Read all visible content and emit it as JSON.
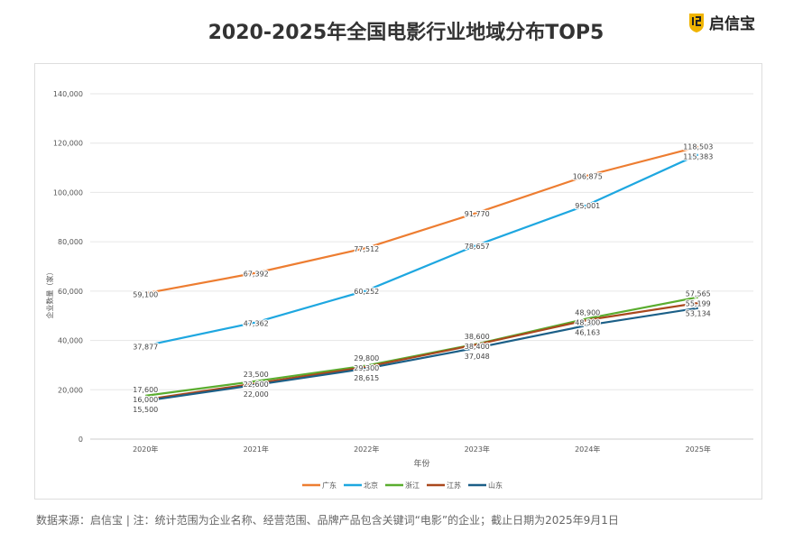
{
  "title": "2020-2025年全国电影行业地域分布TOP5",
  "brand": {
    "name": "启信宝",
    "color": "#f0b400"
  },
  "footer": "数据来源：启信宝 | 注：统计范围为企业名称、经营范围、品牌产品包含关键词“电影”的企业；截止日期为2025年9月1日",
  "chart_data": {
    "type": "line",
    "xlabel": "年份",
    "ylabel": "企业数量（家）",
    "ylim": [
      0,
      140000
    ],
    "yticks": [
      0,
      20000,
      40000,
      60000,
      80000,
      100000,
      120000,
      140000
    ],
    "ytick_labels": [
      "0",
      "20,000",
      "40,000",
      "60,000",
      "80,000",
      "100,000",
      "120,000",
      "140,000"
    ],
    "grid": true,
    "legend": "bottom",
    "categories": [
      "2020年",
      "2021年",
      "2022年",
      "2023年",
      "2024年",
      "2025年"
    ],
    "series": [
      {
        "name": "广东",
        "color": "#ed7d31",
        "values": [
          59100,
          67392,
          77512,
          91770,
          106875,
          118503
        ]
      },
      {
        "name": "北京",
        "color": "#1ea7e0",
        "values": [
          37877,
          47362,
          60252,
          78657,
          95001,
          115383
        ]
      },
      {
        "name": "浙江",
        "color": "#5aad2f",
        "values": [
          17600,
          23500,
          29800,
          38600,
          48900,
          57565
        ]
      },
      {
        "name": "江苏",
        "color": "#a9481d",
        "values": [
          16000,
          22600,
          29300,
          38400,
          48300,
          55199
        ]
      },
      {
        "name": "山东",
        "color": "#1b5f87",
        "values": [
          15500,
          22000,
          28615,
          37048,
          46163,
          53134
        ]
      }
    ]
  }
}
